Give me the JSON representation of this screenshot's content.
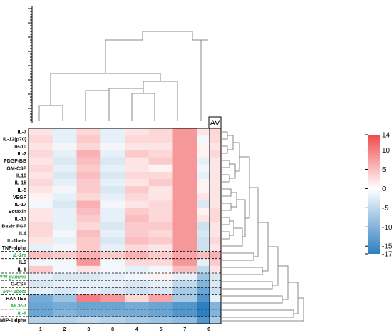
{
  "chart_data": {
    "type": "heatmap",
    "title": "",
    "xlabel": "",
    "ylabel": "",
    "columns": [
      "1",
      "2",
      "3",
      "8",
      "4",
      "5",
      "7",
      "6"
    ],
    "extra_column_label": "AV",
    "rows": [
      {
        "label": "IL-7",
        "highlight": false
      },
      {
        "label": "IL-12(p70)",
        "highlight": false
      },
      {
        "label": "IP-10",
        "highlight": false
      },
      {
        "label": "IL-2",
        "highlight": false
      },
      {
        "label": "PDGF-BB",
        "highlight": false
      },
      {
        "label": "GM-CSF",
        "highlight": false
      },
      {
        "label": "IL10",
        "highlight": false
      },
      {
        "label": "IL-15",
        "highlight": false
      },
      {
        "label": "IL-5",
        "highlight": false
      },
      {
        "label": "VEGF",
        "highlight": false
      },
      {
        "label": "IL-17",
        "highlight": false
      },
      {
        "label": "Eotaxin",
        "highlight": false
      },
      {
        "label": "IL-13",
        "highlight": false
      },
      {
        "label": "Basic FGF",
        "highlight": false
      },
      {
        "label": "IL4",
        "highlight": false
      },
      {
        "label": "IL-1beta",
        "highlight": false
      },
      {
        "label": "TNF-alpha",
        "highlight": false
      },
      {
        "label": "IL-1ra",
        "highlight": true
      },
      {
        "label": "IL9",
        "highlight": false
      },
      {
        "label": "IL-6",
        "highlight": false
      },
      {
        "label": "IFN-gamma",
        "highlight": true
      },
      {
        "label": "G-CSF",
        "highlight": false
      },
      {
        "label": "MIP-1beta",
        "highlight": true
      },
      {
        "label": "RANTES",
        "highlight": false
      },
      {
        "label": "MCP-1",
        "highlight": true
      },
      {
        "label": "IL-8",
        "highlight": true
      },
      {
        "label": "MIP-1alpha",
        "highlight": false
      }
    ],
    "values": [
      [
        2,
        -2,
        3,
        -2,
        2,
        3,
        8,
        2,
        3
      ],
      [
        3,
        -2,
        4,
        -2,
        3,
        3,
        8,
        -1,
        3
      ],
      [
        2,
        -1,
        3,
        -1,
        2,
        2,
        8,
        1,
        2
      ],
      [
        3,
        -2,
        6,
        -2,
        4,
        3,
        8,
        1,
        3
      ],
      [
        2,
        -3,
        5,
        -3,
        2,
        4,
        8,
        -2,
        2
      ],
      [
        3,
        -2,
        4,
        -2,
        2,
        1,
        8,
        -1,
        2
      ],
      [
        2,
        -3,
        5,
        -3,
        3,
        3,
        8,
        -2,
        2
      ],
      [
        3,
        -2,
        4,
        -2,
        2,
        4,
        8,
        1,
        2
      ],
      [
        2,
        -1,
        4,
        -3,
        4,
        2,
        8,
        1,
        2
      ],
      [
        1,
        -2,
        3,
        -2,
        3,
        2,
        8,
        2,
        2
      ],
      [
        -1,
        -3,
        6,
        -1,
        2,
        3,
        8,
        -3,
        2
      ],
      [
        2,
        -2,
        5,
        -2,
        4,
        3,
        8,
        1,
        3
      ],
      [
        2,
        -2,
        4,
        -2,
        5,
        3,
        8,
        2,
        3
      ],
      [
        3,
        -2,
        3,
        -3,
        4,
        4,
        8,
        -4,
        2
      ],
      [
        3,
        -1,
        5,
        -2,
        4,
        3,
        8,
        -3,
        2
      ],
      [
        2,
        -2,
        4,
        -3,
        5,
        4,
        8,
        -4,
        3
      ],
      [
        -2,
        -1,
        4,
        -2,
        3,
        2,
        8,
        -4,
        2
      ],
      [
        5,
        4,
        6,
        4,
        6,
        4,
        7,
        5,
        6
      ],
      [
        -1,
        -1,
        8,
        -1,
        3,
        3,
        8,
        -2,
        4
      ],
      [
        4,
        -1,
        2,
        -1,
        -2,
        -1,
        5,
        -5,
        2
      ],
      [
        -2,
        -3,
        -3,
        -2,
        -1,
        1,
        -2,
        -8,
        -3
      ],
      [
        -3,
        -2,
        -2,
        -2,
        -3,
        -2,
        -5,
        -10,
        -3
      ],
      [
        -2,
        -3,
        -2,
        -3,
        -4,
        -3,
        -7,
        -12,
        -4
      ],
      [
        -11,
        -8,
        10,
        8,
        3,
        7,
        -7,
        -14,
        -2
      ],
      [
        -12,
        -11,
        -12,
        -12,
        -11,
        -12,
        -14,
        -17,
        -10
      ],
      [
        -12,
        -10,
        -11,
        -11,
        -11,
        -12,
        -14,
        -17,
        -10
      ],
      [
        -6,
        -6,
        -5,
        -6,
        -7,
        -8,
        -9,
        -14,
        -7
      ]
    ],
    "colorbar": {
      "min": -17,
      "max": 14,
      "ticks": [
        14,
        10,
        5,
        0,
        -5,
        -10,
        -15,
        -17
      ]
    },
    "colors": {
      "high": "#f04a4e",
      "mid": "#ffffff",
      "low": "#2d7fc1",
      "highlight_label": "#2db34a"
    }
  }
}
